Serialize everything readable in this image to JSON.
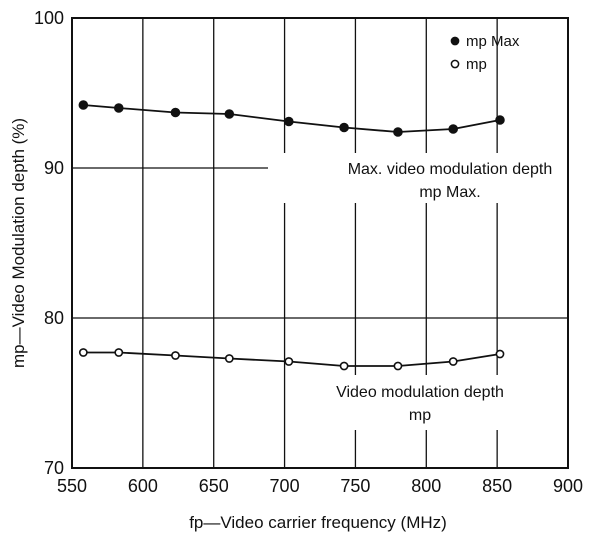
{
  "chart_data": {
    "type": "line",
    "xlabel": "fp—Video carrier frequency (MHz)",
    "ylabel": "mp—Video Modulation depth (%)",
    "xlim": [
      550,
      900
    ],
    "ylim": [
      70,
      100
    ],
    "xticks": [
      550,
      600,
      650,
      700,
      750,
      800,
      850,
      900
    ],
    "yticks": [
      70,
      80,
      90,
      100
    ],
    "grid": true,
    "legend_position": "top-right",
    "series": [
      {
        "name": "mp Max",
        "marker": "filled-circle",
        "x": [
          558,
          583,
          623,
          661,
          703,
          742,
          780,
          819,
          852
        ],
        "y": [
          94.2,
          94.0,
          93.7,
          93.6,
          93.1,
          92.7,
          92.4,
          92.6,
          93.2
        ]
      },
      {
        "name": "mp",
        "marker": "open-circle",
        "x": [
          558,
          583,
          623,
          661,
          703,
          742,
          780,
          819,
          852
        ],
        "y": [
          77.7,
          77.7,
          77.5,
          77.3,
          77.1,
          76.8,
          76.8,
          77.1,
          77.6
        ]
      }
    ],
    "annotations": [
      {
        "lines": [
          "Max. video modulation depth",
          "mp Max."
        ]
      },
      {
        "lines": [
          "Video modulation depth",
          "mp"
        ]
      }
    ]
  }
}
